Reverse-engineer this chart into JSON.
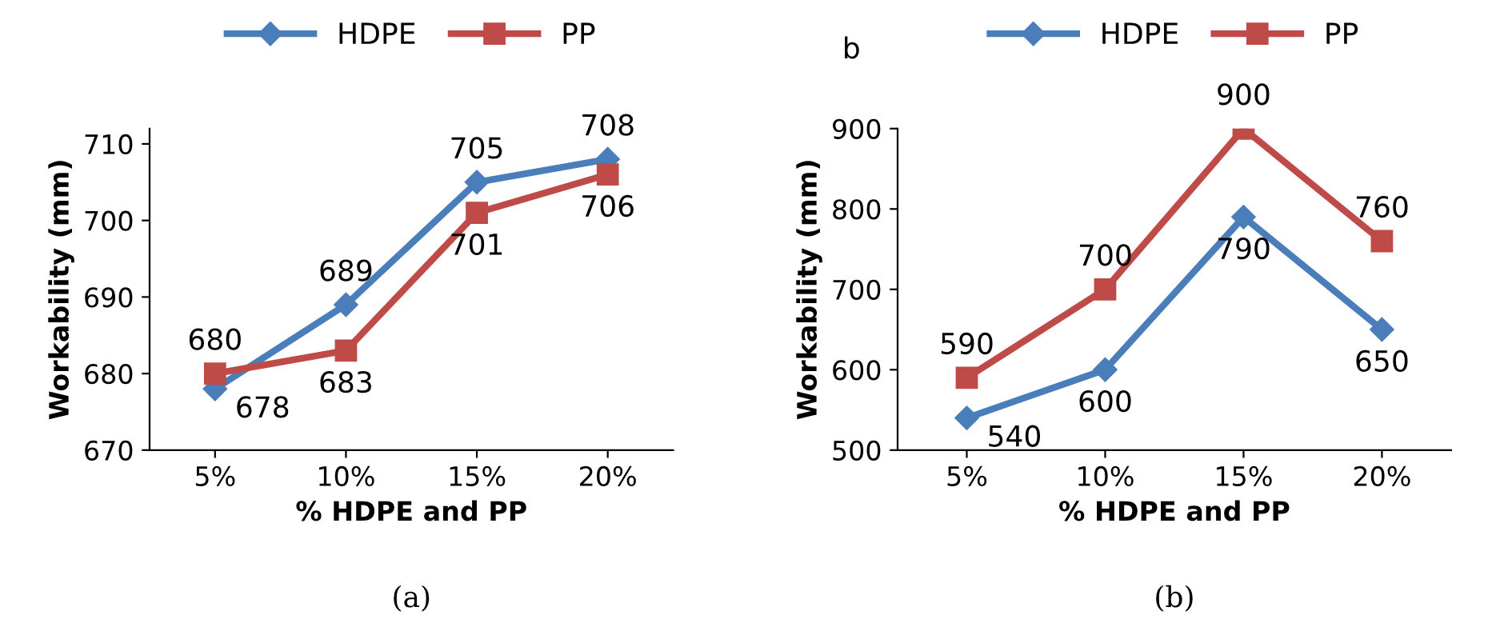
{
  "chart_data": [
    {
      "type": "line",
      "xlabel": "% HDPE and PP",
      "ylabel": "Workability (mm)",
      "categories": [
        "5%",
        "10%",
        "15%",
        "20%"
      ],
      "ylim": [
        670,
        712
      ],
      "yticks": [
        670,
        680,
        690,
        700,
        710
      ],
      "legend": "top",
      "grid": false,
      "data_labels": true,
      "annotations": [
        "(a)"
      ],
      "series": [
        {
          "name": "HDPE",
          "color": "#4a7ebb",
          "marker": "diamond",
          "values": [
            678,
            689,
            705,
            708
          ]
        },
        {
          "name": "PP",
          "color": "#be4b48",
          "marker": "square",
          "values": [
            680,
            683,
            701,
            706
          ]
        }
      ]
    },
    {
      "type": "line",
      "xlabel": "% HDPE and PP",
      "ylabel": "Workability (mm)",
      "categories": [
        "5%",
        "10%",
        "15%",
        "20%"
      ],
      "ylim": [
        500,
        900
      ],
      "yticks": [
        500,
        600,
        700,
        800,
        900
      ],
      "legend": "top",
      "grid": false,
      "data_labels": true,
      "annotations": [
        "b",
        "(b)"
      ],
      "series": [
        {
          "name": "HDPE",
          "color": "#4a7ebb",
          "marker": "diamond",
          "values": [
            540,
            600,
            790,
            650
          ]
        },
        {
          "name": "PP",
          "color": "#be4b48",
          "marker": "square",
          "values": [
            590,
            700,
            900,
            760
          ]
        }
      ]
    }
  ]
}
